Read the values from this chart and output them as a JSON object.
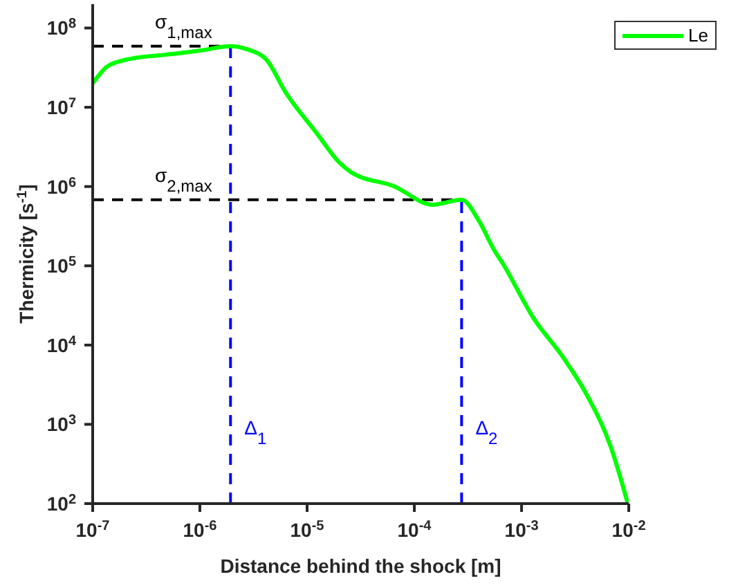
{
  "chart_data": {
    "type": "line",
    "xlabel": "Distance behind the shock [m]",
    "ylabel": "Thermicity [s$^{-1}$]",
    "log": "xy",
    "xlim": [
      1e-07,
      0.01
    ],
    "ylim": [
      100,
      200000000.0
    ],
    "xticks": [
      {
        "value": 1e-07,
        "label": "10$^{-7}$"
      },
      {
        "value": 1e-06,
        "label": "10$^{-6}$"
      },
      {
        "value": 1e-05,
        "label": "10$^{-5}$"
      },
      {
        "value": 0.0001,
        "label": "10$^{-4}$"
      },
      {
        "value": 0.001,
        "label": "10$^{-3}$"
      },
      {
        "value": 0.01,
        "label": "10$^{-2}$"
      }
    ],
    "yticks": [
      {
        "value": 100,
        "label": "10$^{2}$"
      },
      {
        "value": 1000,
        "label": "10$^{3}$"
      },
      {
        "value": 10000,
        "label": "10$^{4}$"
      },
      {
        "value": 100000,
        "label": "10$^{5}$"
      },
      {
        "value": 1000000,
        "label": "10$^{6}$"
      },
      {
        "value": 10000000,
        "label": "10$^{7}$"
      },
      {
        "value": 100000000,
        "label": "10$^{8}$"
      }
    ],
    "grid": false,
    "legend": "top right",
    "marker": "none",
    "line_style": "solid",
    "series": [
      {
        "name": "Le",
        "color": "#00ff00",
        "x": [
          1e-07,
          1.38e-07,
          2.28e-07,
          4.8e-07,
          1.01e-06,
          1.93e-06,
          2.75e-06,
          4.17e-06,
          6.25e-06,
          1.23e-05,
          2.02e-05,
          2.59e-05,
          6.45e-05,
          0.000148,
          0.000276,
          0.0004,
          0.00056,
          0.00066,
          0.00129,
          0.0025,
          0.0041,
          0.0068,
          0.0098
        ],
        "values": [
          20000000.0,
          33000000.0,
          41000000.0,
          46000000.0,
          52000000.0,
          59000000.0,
          54000000.0,
          40000000.0,
          15700000.0,
          4700000.0,
          1980000.0,
          1510000.0,
          1010000.0,
          590000.0,
          680000.0,
          370000.0,
          155000.0,
          110000.0,
          22000.0,
          6700.0,
          2300.0,
          520,
          100
        ]
      }
    ],
    "ref_lines": [
      {
        "axis": "y",
        "value": 59000000.0,
        "label": "σ$_{1,max}$",
        "color": "#000000",
        "line_style": "dashed"
      },
      {
        "axis": "y",
        "value": 680000.0,
        "label": "σ$_{2,max}$",
        "color": "#000000",
        "line_style": "dashed"
      },
      {
        "axis": "x",
        "value": 1.93e-06,
        "label": "Δ$_{1}$",
        "color": "#0000ff",
        "line_style": "dashed"
      },
      {
        "axis": "x",
        "value": 0.000276,
        "label": "Δ$_{2}$",
        "color": "#0000ff",
        "line_style": "dashed"
      }
    ]
  }
}
